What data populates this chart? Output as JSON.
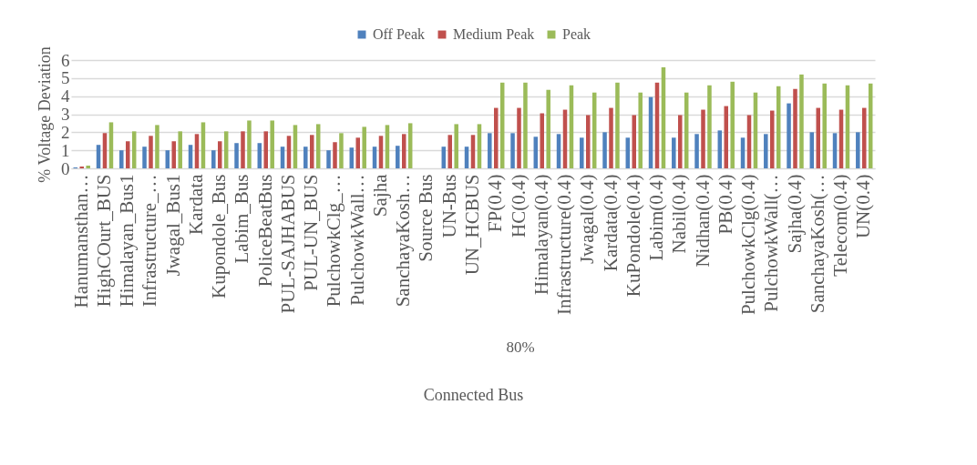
{
  "chart_data": {
    "type": "bar",
    "ylabel": "% Voltage Deviation",
    "xlabel": "Connected Bus",
    "annotations": [
      "80%"
    ],
    "categories": [
      "Hanumansthan…",
      "HighCOurt_BUS",
      "Himalayan_Bus1",
      "Infrastructure_…",
      "Jwagal_Bus1",
      "Kardata",
      "Kupondole_Bus",
      "Labim_Bus",
      "PoliceBeatBus",
      "PUL-SAJHABUS",
      "PUL-UN_BUS",
      "PulchowkClg_…",
      "PulchowkWall…",
      "Sajha",
      "SanchayaKosh…",
      "Source Bus",
      "UN-Bus",
      "UN_HCBUS",
      "FP(0.4)",
      "HC(0.4)",
      "Himalayan(0.4)",
      "Infrastructure(0.4)",
      "Jwagal(0.4)",
      "Kardata(0.4)",
      "KuPondole(0.4)",
      "Labim(0.4)",
      "Nabil(0.4)",
      "Nidhan(0.4)",
      "PB(0.4)",
      "PulchowkClg(0.4)",
      "PulchowkWall(…",
      "Sajha(0.4)",
      "SanchayaKosh(…",
      "Telecom(0.4)",
      "UN(0.4)"
    ],
    "series": [
      {
        "name": "Off Peak",
        "color": "#4f81bd",
        "values": [
          0.05,
          1.3,
          1.0,
          1.2,
          1.0,
          1.3,
          1.0,
          1.4,
          1.4,
          1.2,
          1.2,
          1.0,
          1.15,
          1.2,
          1.25,
          0,
          1.2,
          1.2,
          1.95,
          1.95,
          1.75,
          1.9,
          1.7,
          2.0,
          1.7,
          3.95,
          1.7,
          1.9,
          2.1,
          1.7,
          1.9,
          3.6,
          2.0,
          1.95,
          2.0
        ]
      },
      {
        "name": "Medium Peak",
        "color": "#c0504d",
        "values": [
          0.1,
          1.95,
          1.5,
          1.8,
          1.5,
          1.9,
          1.5,
          2.05,
          2.05,
          1.8,
          1.85,
          1.45,
          1.7,
          1.8,
          1.9,
          0,
          1.85,
          1.85,
          3.35,
          3.35,
          3.05,
          3.25,
          2.95,
          3.35,
          2.95,
          4.75,
          2.95,
          3.25,
          3.45,
          2.95,
          3.2,
          4.4,
          3.35,
          3.25,
          3.35
        ]
      },
      {
        "name": "Peak",
        "color": "#9bbb59",
        "values": [
          0.15,
          2.55,
          2.05,
          2.4,
          2.05,
          2.55,
          2.05,
          2.65,
          2.65,
          2.4,
          2.45,
          1.95,
          2.3,
          2.4,
          2.5,
          0,
          2.45,
          2.45,
          4.75,
          4.75,
          4.35,
          4.6,
          4.2,
          4.75,
          4.2,
          5.6,
          4.2,
          4.6,
          4.8,
          4.2,
          4.55,
          5.2,
          4.7,
          4.6,
          4.7
        ]
      }
    ],
    "ylim": [
      0,
      6
    ],
    "yticks": [
      0,
      1,
      2,
      3,
      4,
      5,
      6
    ],
    "grid": "y",
    "legend": "top"
  }
}
